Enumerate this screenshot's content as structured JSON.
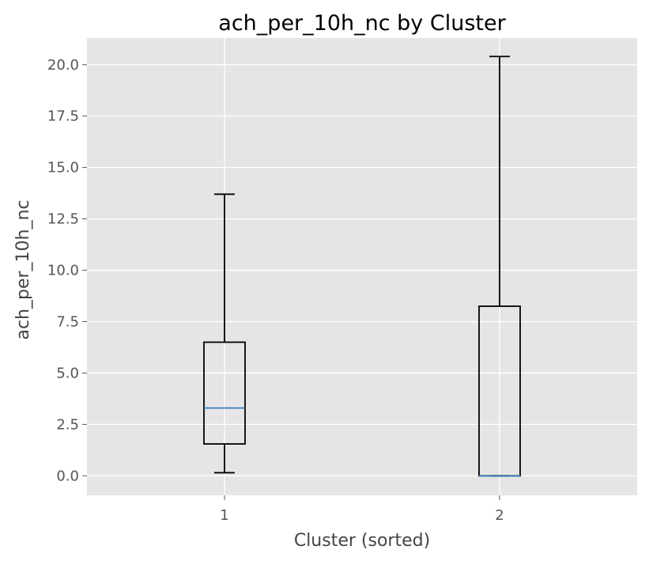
{
  "chart_data": {
    "type": "box",
    "title": "ach_per_10h_nc by Cluster",
    "xlabel": "Cluster (sorted)",
    "ylabel": "ach_per_10h_nc",
    "ylim": [
      -0.95,
      21.3
    ],
    "yticks": [
      "0.0",
      "2.5",
      "5.0",
      "7.5",
      "10.0",
      "12.5",
      "15.0",
      "17.5",
      "20.0"
    ],
    "categories": [
      "1",
      "2"
    ],
    "boxes": [
      {
        "category": "1",
        "whisker_low": 0.15,
        "q1": 1.55,
        "median": 3.3,
        "q3": 6.5,
        "whisker_high": 13.7
      },
      {
        "category": "2",
        "whisker_low": 0.0,
        "q1": 0.0,
        "median": 0.0,
        "q3": 8.25,
        "whisker_high": 20.4
      }
    ],
    "grid": true,
    "colors": {
      "plot_background": "#e5e5e5",
      "grid": "#ffffff",
      "box": "#000000",
      "median": "#3a7ebf"
    }
  }
}
